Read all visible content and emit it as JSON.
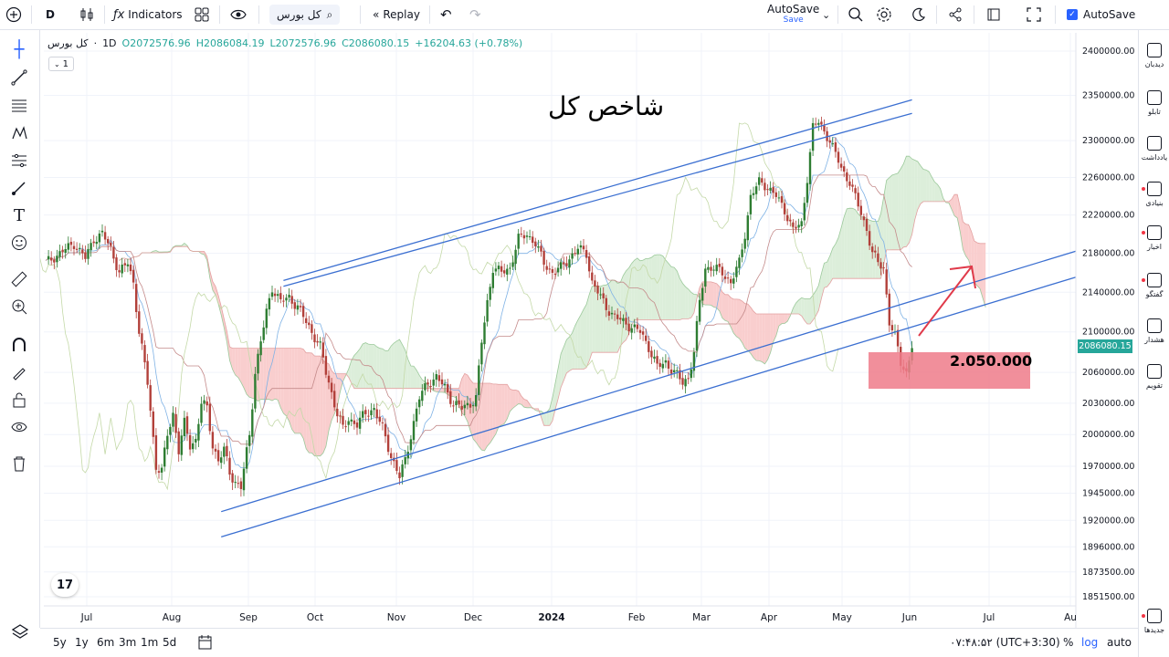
{
  "topbar": {
    "interval": "D",
    "indicators_label": "Indicators",
    "symbol_search": "کل بورس",
    "replay_label": "Replay",
    "autosave_label": "AutoSave",
    "autosave_sub": "Save",
    "autosave_checkbox_label": "AutoSave"
  },
  "legend": {
    "symbol": "کل بورس",
    "interval": "1D",
    "open": "O2072576.96",
    "high": "H2086084.19",
    "low": "L2072576.96",
    "close": "C2086080.15",
    "change": "+16204.63 (+0.78%)",
    "badge": "1"
  },
  "right_sidebar": [
    {
      "label": "دیدبان",
      "icon": "watchlist-icon"
    },
    {
      "label": "تابلو",
      "icon": "board-icon"
    },
    {
      "label": "یادداشت",
      "icon": "notes-icon"
    },
    {
      "label": "بنیادی",
      "icon": "fundamentals-icon"
    },
    {
      "label": "اخبار",
      "icon": "news-icon"
    },
    {
      "label": "گفتگو",
      "icon": "chat-icon"
    },
    {
      "label": "هشدار",
      "icon": "alert-icon"
    },
    {
      "label": "تقویم",
      "icon": "calendar-icon"
    },
    {
      "label": "جدیدها",
      "icon": "whats-new-icon"
    }
  ],
  "bottombar": {
    "ranges": [
      "5y",
      "1y",
      "6m",
      "3m",
      "1m",
      "5d"
    ],
    "time": "۰۷:۴۸:۵۲ (UTC+3:30)",
    "percent": "%",
    "log": "log",
    "auto": "auto"
  },
  "colors": {
    "up": "#26a69a",
    "up_body": "#2e7d32",
    "down": "#b2403a",
    "channel": "#3b6fd1",
    "kumo_bull": "#d8ecd6",
    "kumo_bear": "#f8c9c9",
    "highlight": "#ef7b8a",
    "arrow": "#e03a4a",
    "accent": "#2962ff"
  },
  "chart_data": {
    "type": "candlestick",
    "title": "شاخص کل",
    "annotation": "2.050.000",
    "last_price_label": "2086080.15",
    "ylim": [
      1840000,
      2420000
    ],
    "scale": "log",
    "y_ticks": [
      "2400000.00",
      "2350000.00",
      "2300000.00",
      "2260000.00",
      "2220000.00",
      "2180000.00",
      "2140000.00",
      "2100000.00",
      "2060000.00",
      "2030000.00",
      "2000000.00",
      "1970000.00",
      "1945000.00",
      "1920000.00",
      "1896000.00",
      "1873500.00",
      "1851500.00"
    ],
    "x_ticks": [
      "Jul",
      "Aug",
      "Sep",
      "Oct",
      "Nov",
      "Dec",
      "2024",
      "Feb",
      "Mar",
      "Apr",
      "May",
      "Jun",
      "Jul",
      "Au"
    ],
    "x_ticks_bold": [
      "2024"
    ],
    "price_path": [
      [
        0,
        2170000
      ],
      [
        5,
        2180000
      ],
      [
        10,
        2190000
      ],
      [
        14,
        2175000
      ],
      [
        17,
        2195000
      ],
      [
        20,
        2200000
      ],
      [
        23,
        2185000
      ],
      [
        26,
        2160000
      ],
      [
        29,
        2170000
      ],
      [
        31,
        2150000
      ],
      [
        33,
        2100000
      ],
      [
        36,
        2050000
      ],
      [
        39,
        1970000
      ],
      [
        41,
        1965000
      ],
      [
        43,
        2000000
      ],
      [
        45,
        2020000
      ],
      [
        47,
        1985000
      ],
      [
        49,
        2010000
      ],
      [
        51,
        1990000
      ],
      [
        53,
        1995000
      ],
      [
        55,
        2030000
      ],
      [
        57,
        2025000
      ],
      [
        59,
        1990000
      ],
      [
        61,
        1975000
      ],
      [
        63,
        1985000
      ],
      [
        65,
        1965000
      ],
      [
        67,
        1955000
      ],
      [
        69,
        1950000
      ],
      [
        72,
        2000000
      ],
      [
        74,
        2060000
      ],
      [
        76,
        2090000
      ],
      [
        78,
        2120000
      ],
      [
        80,
        2145000
      ],
      [
        83,
        2130000
      ],
      [
        86,
        2135000
      ],
      [
        89,
        2125000
      ],
      [
        92,
        2110000
      ],
      [
        95,
        2095000
      ],
      [
        97,
        2085000
      ],
      [
        99,
        2060000
      ],
      [
        101,
        2040000
      ],
      [
        103,
        2020000
      ],
      [
        105,
        2005000
      ],
      [
        107,
        2015000
      ],
      [
        110,
        2010000
      ],
      [
        113,
        2020000
      ],
      [
        116,
        2025000
      ],
      [
        119,
        2005000
      ],
      [
        122,
        1980000
      ],
      [
        125,
        1960000
      ],
      [
        127,
        1975000
      ],
      [
        129,
        2000000
      ],
      [
        132,
        2035000
      ],
      [
        135,
        2050000
      ],
      [
        138,
        2055000
      ],
      [
        141,
        2045000
      ],
      [
        144,
        2030000
      ],
      [
        147,
        2025000
      ],
      [
        150,
        2030000
      ],
      [
        152,
        2035000
      ],
      [
        154,
        2090000
      ],
      [
        156,
        2130000
      ],
      [
        158,
        2165000
      ],
      [
        161,
        2160000
      ],
      [
        164,
        2165000
      ],
      [
        167,
        2195000
      ],
      [
        170,
        2200000
      ],
      [
        173,
        2190000
      ],
      [
        176,
        2170000
      ],
      [
        179,
        2160000
      ],
      [
        182,
        2165000
      ],
      [
        185,
        2175000
      ],
      [
        188,
        2185000
      ],
      [
        191,
        2180000
      ],
      [
        193,
        2150000
      ],
      [
        195,
        2140000
      ],
      [
        198,
        2125000
      ],
      [
        201,
        2115000
      ],
      [
        204,
        2110000
      ],
      [
        207,
        2105000
      ],
      [
        210,
        2100000
      ],
      [
        213,
        2085000
      ],
      [
        216,
        2065000
      ],
      [
        219,
        2070000
      ],
      [
        222,
        2060000
      ],
      [
        225,
        2050000
      ],
      [
        227,
        2055000
      ],
      [
        229,
        2080000
      ],
      [
        231,
        2130000
      ],
      [
        233,
        2165000
      ],
      [
        236,
        2165000
      ],
      [
        239,
        2160000
      ],
      [
        242,
        2150000
      ],
      [
        245,
        2170000
      ],
      [
        247,
        2200000
      ],
      [
        249,
        2240000
      ],
      [
        252,
        2255000
      ],
      [
        255,
        2250000
      ],
      [
        258,
        2240000
      ],
      [
        261,
        2225000
      ],
      [
        264,
        2205000
      ],
      [
        267,
        2210000
      ],
      [
        269,
        2260000
      ],
      [
        271,
        2315000
      ],
      [
        273,
        2320000
      ],
      [
        275,
        2310000
      ],
      [
        277,
        2300000
      ],
      [
        279,
        2285000
      ],
      [
        281,
        2270000
      ],
      [
        284,
        2255000
      ],
      [
        287,
        2230000
      ],
      [
        290,
        2205000
      ],
      [
        292,
        2180000
      ],
      [
        294,
        2170000
      ],
      [
        296,
        2165000
      ],
      [
        298,
        2110000
      ],
      [
        300,
        2095000
      ],
      [
        302,
        2070000
      ],
      [
        304,
        2060000
      ],
      [
        306,
        2086080
      ]
    ],
    "channel_upper": [
      [
        84,
        2152000
      ],
      [
        306,
        2345000
      ]
    ],
    "channel_upper2": [
      [
        84,
        2146000
      ],
      [
        306,
        2330000
      ]
    ],
    "channel_lower": [
      [
        62,
        1928000
      ],
      [
        306,
        2131000
      ]
    ],
    "channel_lower2": [
      [
        62,
        1905000
      ],
      [
        306,
        2105000
      ]
    ]
  }
}
